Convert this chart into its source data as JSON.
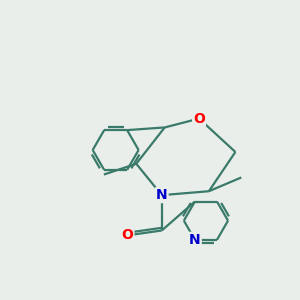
{
  "bg_color": "#eaeeea",
  "bond_color": "#3a7a6a",
  "atom_colors": {
    "O": "#ff0000",
    "N": "#0000cc",
    "C": "#000000"
  },
  "line_width": 1.6,
  "figsize": [
    3.0,
    3.0
  ],
  "dpi": 100
}
